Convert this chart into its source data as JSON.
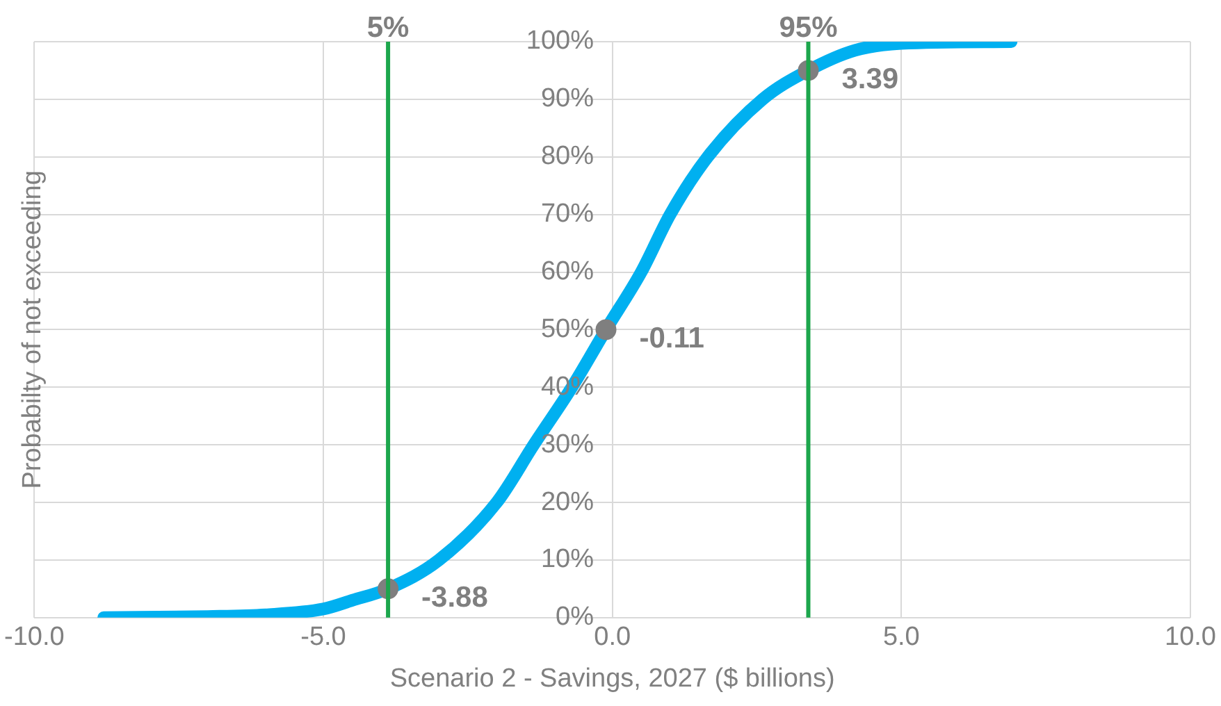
{
  "chart_data": {
    "xlabel": "Scenario 2 - Savings, 2027 ($ billions)",
    "ylabel": "Probabilty of not exceeding",
    "type": "line",
    "xlim": [
      -10,
      10
    ],
    "xticks": [
      {
        "value": -10,
        "label": "-10.0"
      },
      {
        "value": -5,
        "label": "-5.0"
      },
      {
        "value": 0,
        "label": "0.0"
      },
      {
        "value": 5,
        "label": "5.0"
      },
      {
        "value": 10,
        "label": "10.0"
      }
    ],
    "ylim": [
      0,
      100
    ],
    "yticks": [
      {
        "value": 0,
        "label": "0%"
      },
      {
        "value": 10,
        "label": "10%"
      },
      {
        "value": 20,
        "label": "20%"
      },
      {
        "value": 30,
        "label": "30%"
      },
      {
        "value": 40,
        "label": "40%"
      },
      {
        "value": 50,
        "label": "50%"
      },
      {
        "value": 60,
        "label": "60%"
      },
      {
        "value": 70,
        "label": "70%"
      },
      {
        "value": 80,
        "label": "80%"
      },
      {
        "value": 90,
        "label": "90%"
      },
      {
        "value": 100,
        "label": "100%"
      }
    ],
    "grid": true,
    "legend": false,
    "marker": "none",
    "line_style": "solid",
    "series": [
      {
        "type": "line",
        "color": "#00b0f0",
        "x": [
          -8.8,
          -7,
          -6,
          -5,
          -4.5,
          -3.88,
          -3,
          -2,
          -1.36,
          -0.7,
          -0.11,
          0.5,
          1,
          1.65,
          2.6,
          3.39,
          4.2,
          5,
          6.9
        ],
        "values": [
          0,
          0.2,
          0.5,
          1.5,
          3,
          5,
          10,
          20,
          30,
          40,
          50,
          60,
          70,
          80,
          90,
          95,
          98.5,
          99.7,
          100
        ]
      },
      {
        "type": "scatter",
        "color": "#7f7f7f",
        "marker": "circle",
        "x": [
          -3.88,
          -0.11,
          3.39
        ],
        "values": [
          5,
          50,
          95
        ]
      }
    ],
    "annotations": [
      {
        "text": "-3.88",
        "x": -3.88,
        "y": 5
      },
      {
        "text": "-0.11",
        "x": -0.11,
        "y": 50
      },
      {
        "text": "3.39",
        "x": 3.39,
        "y": 95
      },
      "5%",
      "95%"
    ],
    "ref_lines": [
      {
        "axis": "x",
        "value": -3.88,
        "color": "#1ca64c"
      },
      {
        "axis": "x",
        "value": 3.39,
        "color": "#1ca64c"
      }
    ]
  }
}
